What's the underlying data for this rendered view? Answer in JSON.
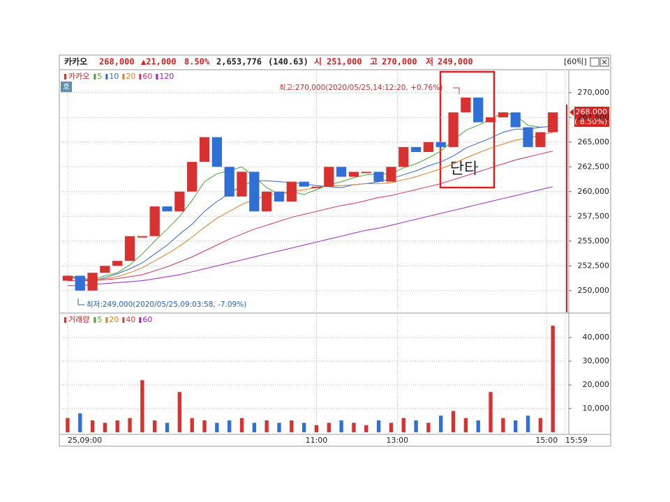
{
  "header": {
    "name": "카카오",
    "price": "268,000",
    "change": "▲21,000",
    "rate": "8.50%",
    "volume": "2,653,776",
    "ratio": "(140.63)",
    "open_label": "시",
    "open": "251,000",
    "high_label": "고",
    "high": "270,000",
    "low_label": "저",
    "low": "249,000",
    "interval": "[60틱]",
    "badge": "호"
  },
  "chart_data": {
    "type": "candlestick",
    "legend_name": "카카오",
    "up_color": "#d93030",
    "down_color": "#2f6fd6",
    "candles": {
      "open": [
        251000,
        251500,
        250000,
        251800,
        252500,
        253000,
        255500,
        255500,
        258500,
        258000,
        260000,
        263000,
        265500,
        262500,
        259500,
        262000,
        258000,
        260000,
        259000,
        261000,
        260500,
        260500,
        262500,
        261500,
        262000,
        262000,
        261000,
        262500,
        264500,
        264000,
        265000,
        264500,
        268000,
        269500,
        267000,
        267500,
        268000,
        266500,
        264500,
        266000
      ],
      "close": [
        251500,
        250000,
        251800,
        252500,
        253000,
        255500,
        255500,
        258500,
        258000,
        260000,
        263000,
        265500,
        262500,
        259500,
        262000,
        258000,
        260000,
        259000,
        261000,
        260500,
        260500,
        262500,
        261500,
        262000,
        262000,
        261000,
        262500,
        264500,
        264000,
        265000,
        264500,
        268000,
        269500,
        267000,
        267500,
        268000,
        266500,
        264500,
        266000,
        268000
      ]
    },
    "ma": [
      {
        "name": "5",
        "color": "#4ea02a",
        "values": [
          251500,
          251000,
          251100,
          251500,
          251800,
          252600,
          253700,
          255000,
          256200,
          257500,
          259100,
          261000,
          261800,
          262100,
          262500,
          261500,
          260400,
          259700,
          260000,
          259700,
          260200,
          260700,
          261000,
          261400,
          261700,
          261800,
          261800,
          262400,
          262800,
          263400,
          264100,
          265200,
          266200,
          266700,
          267300,
          268000,
          267700,
          266700,
          266500,
          266600
        ]
      },
      {
        "name": "10",
        "color": "#3366cc",
        "values": [
          251500,
          251200,
          251000,
          251300,
          251700,
          252200,
          252800,
          253700,
          254600,
          255700,
          256700,
          258000,
          259000,
          259800,
          260600,
          261100,
          261100,
          261000,
          260900,
          260800,
          260600,
          260500,
          260400,
          260700,
          260800,
          261000,
          261300,
          261700,
          262100,
          262600,
          263000,
          263600,
          264400,
          264900,
          265400,
          266000,
          266300,
          266300,
          266500,
          266600
        ]
      },
      {
        "name": "20",
        "color": "#e07a20",
        "values": [
          251500,
          251300,
          251100,
          251200,
          251400,
          251800,
          252300,
          253000,
          253700,
          254500,
          255400,
          256400,
          257300,
          258000,
          258700,
          259200,
          259600,
          259800,
          260000,
          260200,
          260400,
          260600,
          260600,
          260700,
          260800,
          260800,
          260900,
          261200,
          261500,
          261900,
          262300,
          262800,
          263400,
          263900,
          264400,
          264800,
          265200,
          265400,
          265700,
          266000
        ]
      },
      {
        "name": "60",
        "color": "#d0306a",
        "values": [
          251000,
          251000,
          251000,
          251100,
          251200,
          251400,
          251600,
          252000,
          252400,
          252900,
          253400,
          254000,
          254600,
          255200,
          255700,
          256200,
          256600,
          257000,
          257400,
          257700,
          258000,
          258300,
          258600,
          258800,
          259100,
          259400,
          259600,
          259900,
          260200,
          260500,
          260800,
          261200,
          261600,
          262000,
          262400,
          262800,
          263200,
          263500,
          263800,
          264100
        ]
      },
      {
        "name": "120",
        "color": "#a020c0",
        "values": [
          250500,
          250500,
          250600,
          250700,
          250800,
          250900,
          251000,
          251200,
          251400,
          251600,
          251900,
          252200,
          252500,
          252800,
          253100,
          253400,
          253700,
          254000,
          254300,
          254600,
          254900,
          255200,
          255500,
          255800,
          256100,
          256300,
          256600,
          256900,
          257200,
          257500,
          257800,
          258100,
          258400,
          258700,
          259000,
          259300,
          259600,
          259900,
          260200,
          260500
        ]
      }
    ],
    "xlim": [
      -0.5,
      40
    ],
    "xticks": [
      {
        "value": 0,
        "label": "25,09:00"
      },
      {
        "value": 20,
        "label": "11:00"
      },
      {
        "value": 26.5,
        "label": "13:00"
      },
      {
        "value": 38.5,
        "label": "15:00"
      },
      {
        "value": 40,
        "label": "15:59"
      }
    ],
    "ylim": [
      247800,
      272100
    ],
    "yticks": [
      {
        "value": 250000,
        "label": "250,000"
      },
      {
        "value": 252500,
        "label": "252,500"
      },
      {
        "value": 255000,
        "label": "255,000"
      },
      {
        "value": 257500,
        "label": "257,500"
      },
      {
        "value": 260000,
        "label": "260,000"
      },
      {
        "value": 262500,
        "label": "262,500"
      },
      {
        "value": 265000,
        "label": "265,000"
      },
      {
        "value": 267500,
        "label": "267,500"
      },
      {
        "value": 270000,
        "label": "270,000"
      }
    ],
    "grid": true,
    "price_tag": {
      "price": "268,000",
      "rate": "( 8.50%)"
    },
    "annotations": {
      "high": "최고:270,000(2020/05/25,14:12:20, +0.76%)",
      "low": "최저:249,000(2020/05/25,09:03:58, -7.09%)",
      "box": "단타"
    },
    "volume": {
      "legend_name": "거래량",
      "values": [
        6000,
        8000,
        5000,
        4000,
        5000,
        6000,
        22000,
        5000,
        4000,
        17000,
        6000,
        5000,
        4000,
        5000,
        6000,
        4000,
        5000,
        4000,
        5000,
        4000,
        3000,
        4000,
        5000,
        4000,
        3000,
        5000,
        4000,
        6000,
        5000,
        4000,
        7000,
        9000,
        6000,
        5000,
        17000,
        6000,
        5000,
        7000,
        6000,
        45000
      ],
      "legend": [
        {
          "name": "5",
          "color": "#4ea02a"
        },
        {
          "name": "20",
          "color": "#e07a20"
        },
        {
          "name": "40",
          "color": "#d04040"
        },
        {
          "name": "60",
          "color": "#a020c0"
        }
      ],
      "ylim": [
        0,
        46200
      ],
      "yticks": [
        {
          "value": 10000,
          "label": "10,000"
        },
        {
          "value": 20000,
          "label": "20,000"
        },
        {
          "value": 30000,
          "label": "30,000"
        },
        {
          "value": 40000,
          "label": "40,000"
        }
      ]
    }
  }
}
